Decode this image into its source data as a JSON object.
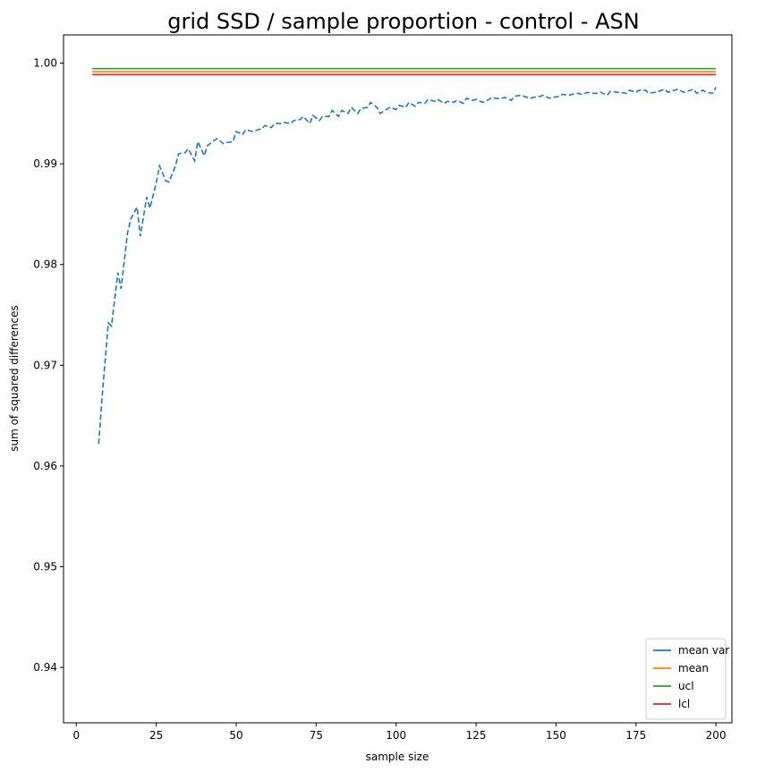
{
  "chart_data": {
    "type": "line",
    "title": "grid SSD / sample proportion - control - ASN",
    "xlabel": "sample size",
    "ylabel": "sum of squared differences",
    "xlim": [
      -4,
      205
    ],
    "ylim": [
      0.9345,
      1.0028
    ],
    "xticks": [
      0,
      25,
      50,
      75,
      100,
      125,
      150,
      175,
      200
    ],
    "yticks": [
      0.94,
      0.95,
      0.96,
      0.97,
      0.98,
      0.99,
      1.0
    ],
    "ytick_labels": [
      "0.94",
      "0.95",
      "0.96",
      "0.97",
      "0.98",
      "0.99",
      "1.00"
    ],
    "legend_position": "lower-right",
    "series": [
      {
        "name": "mean var",
        "color": "#1f77b4",
        "style": "dashed",
        "x": [
          7,
          8,
          10,
          11,
          13,
          14,
          16,
          17,
          19,
          20,
          22,
          23,
          25,
          26,
          28,
          29,
          31,
          32,
          34,
          35,
          37,
          38,
          40,
          41,
          43,
          44,
          46,
          47,
          49,
          50,
          52,
          53,
          55,
          56,
          58,
          59,
          61,
          62,
          64,
          65,
          67,
          68,
          70,
          71,
          73,
          74,
          76,
          77,
          79,
          80,
          82,
          83,
          85,
          86,
          88,
          89,
          91,
          92,
          94,
          95,
          97,
          98,
          100,
          101,
          103,
          104,
          106,
          107,
          109,
          110,
          112,
          113,
          115,
          116,
          118,
          119,
          121,
          122,
          124,
          125,
          127,
          128,
          130,
          131,
          133,
          134,
          136,
          137,
          139,
          140,
          142,
          143,
          145,
          146,
          148,
          149,
          151,
          152,
          154,
          155,
          157,
          158,
          160,
          161,
          163,
          164,
          166,
          167,
          169,
          170,
          172,
          173,
          175,
          176,
          178,
          179,
          181,
          182,
          184,
          185,
          187,
          188,
          190,
          191,
          193,
          194,
          196,
          197,
          199,
          200
        ],
        "y": [
          0.9622,
          0.9666,
          0.9742,
          0.9739,
          0.9792,
          0.9776,
          0.9831,
          0.9845,
          0.9857,
          0.9828,
          0.9867,
          0.9856,
          0.9881,
          0.9898,
          0.9883,
          0.9882,
          0.9898,
          0.991,
          0.9911,
          0.9915,
          0.9903,
          0.9922,
          0.9908,
          0.9918,
          0.9923,
          0.9925,
          0.992,
          0.9921,
          0.9922,
          0.9932,
          0.9929,
          0.9934,
          0.9932,
          0.9933,
          0.9935,
          0.9938,
          0.9936,
          0.994,
          0.994,
          0.9941,
          0.994,
          0.9943,
          0.9944,
          0.9947,
          0.994,
          0.9948,
          0.9943,
          0.9947,
          0.9947,
          0.9953,
          0.9947,
          0.9953,
          0.995,
          0.9956,
          0.995,
          0.9955,
          0.9956,
          0.9961,
          0.9956,
          0.995,
          0.9954,
          0.9956,
          0.9954,
          0.9958,
          0.9956,
          0.9961,
          0.9957,
          0.9961,
          0.996,
          0.9964,
          0.9962,
          0.9964,
          0.996,
          0.9962,
          0.9961,
          0.9963,
          0.996,
          0.9965,
          0.9963,
          0.9964,
          0.9961,
          0.9962,
          0.9966,
          0.9965,
          0.9965,
          0.9966,
          0.9963,
          0.9967,
          0.9968,
          0.9967,
          0.9965,
          0.9966,
          0.9967,
          0.9968,
          0.9965,
          0.9966,
          0.9967,
          0.9969,
          0.9968,
          0.9969,
          0.997,
          0.9969,
          0.9971,
          0.997,
          0.997,
          0.9971,
          0.9968,
          0.9972,
          0.9971,
          0.9971,
          0.997,
          0.9973,
          0.9971,
          0.9973,
          0.9973,
          0.997,
          0.9971,
          0.9972,
          0.9974,
          0.9971,
          0.9973,
          0.9974,
          0.9971,
          0.9972,
          0.9974,
          0.997,
          0.9973,
          0.9971,
          0.997,
          0.9976
        ]
      },
      {
        "name": "mean",
        "color": "#ff7f0e",
        "x": [
          5,
          200
        ],
        "y": [
          0.99915,
          0.99915
        ]
      },
      {
        "name": "ucl",
        "color": "#2ca02c",
        "x": [
          5,
          200
        ],
        "y": [
          0.99945,
          0.99945
        ]
      },
      {
        "name": "lcl",
        "color": "#d62728",
        "x": [
          5,
          200
        ],
        "y": [
          0.99885,
          0.99885
        ]
      }
    ]
  }
}
